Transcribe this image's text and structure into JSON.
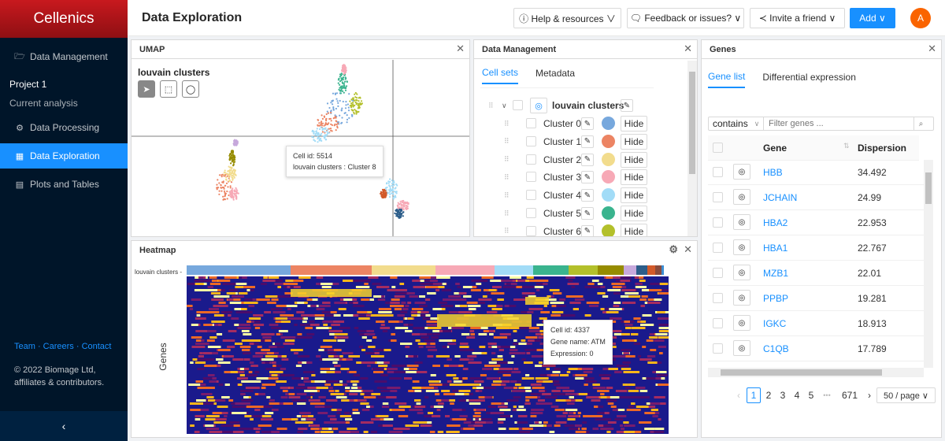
{
  "app": {
    "logo": "Cellenics"
  },
  "sidebar": {
    "items": [
      {
        "label": "Data Management",
        "icon": "folder-open-icon",
        "glyph": "🗁"
      },
      {
        "label": "Data Processing",
        "icon": "build-icon",
        "glyph": "⚙"
      },
      {
        "label": "Data Exploration",
        "icon": "fund-icon",
        "glyph": "▦"
      },
      {
        "label": "Plots and Tables",
        "icon": "database-icon",
        "glyph": "▤"
      }
    ],
    "project_label": "Project 1",
    "current_analysis": "Current analysis",
    "footer_links": "Team · Careers · Contact",
    "copyright": "© 2022 Biomage Ltd, affiliates & contributors.",
    "collapse_icon": "‹"
  },
  "header": {
    "title": "Data Exploration",
    "help": "ⓘ Help & resources ∨",
    "feedback": "🗨 Feedback or issues? ∨",
    "invite": "≺ Invite a friend ∨",
    "add": "Add ∨",
    "avatar": "A"
  },
  "umap": {
    "panel_title": "UMAP",
    "close": "✕",
    "plot_title": "louvain clusters",
    "tools": [
      "➤",
      "⬚",
      "◯"
    ],
    "tooltip": {
      "line1": "Cell id: 5514",
      "line2": "louvain clusters : Cluster 8"
    }
  },
  "data_management": {
    "panel_title": "Data Management",
    "close": "✕",
    "tabs": [
      "Cell sets",
      "Metadata"
    ],
    "root_label": "louvain clusters",
    "clusters": [
      {
        "label": "Cluster 0",
        "color": "#77a8dd"
      },
      {
        "label": "Cluster 1",
        "color": "#ec8463"
      },
      {
        "label": "Cluster 2",
        "color": "#f2dc8d"
      },
      {
        "label": "Cluster 3",
        "color": "#f7a9b6"
      },
      {
        "label": "Cluster 4",
        "color": "#a2dcf7"
      },
      {
        "label": "Cluster 5",
        "color": "#3ab48e"
      },
      {
        "label": "Cluster 6",
        "color": "#b3c02b"
      }
    ],
    "hide_label": "Hide",
    "edit_glyph": "✎"
  },
  "heatmap": {
    "panel_title": "Heatmap",
    "close": "✕",
    "settings": "⚙",
    "row_label": "louvain clusters -",
    "y_label": "Genes",
    "tooltip": {
      "line1": "Cell id: 4337",
      "line2": "Gene name: ATM",
      "line3": "Expression: 0"
    },
    "cluster_bar_colors": [
      "#77a8dd",
      "#ec8463",
      "#f2dc8d",
      "#f7a9b6",
      "#a2dcf7",
      "#3ab48e",
      "#b3c02b",
      "#968c00",
      "#c7a9dc",
      "#2d5e8a",
      "#d25a2a",
      "#8a4b3c",
      "#3c8dd2"
    ]
  },
  "genes": {
    "panel_title": "Genes",
    "close": "✕",
    "tabs": [
      "Gene list",
      "Differential expression"
    ],
    "filter_mode": "contains",
    "filter_placeholder": "Filter genes ...",
    "columns": [
      "Gene",
      "Dispersion"
    ],
    "rows": [
      {
        "gene": "HBB",
        "dispersion": "34.492"
      },
      {
        "gene": "JCHAIN",
        "dispersion": "24.99"
      },
      {
        "gene": "HBA2",
        "dispersion": "22.953"
      },
      {
        "gene": "HBA1",
        "dispersion": "22.767"
      },
      {
        "gene": "MZB1",
        "dispersion": "22.01"
      },
      {
        "gene": "PPBP",
        "dispersion": "19.281"
      },
      {
        "gene": "IGKC",
        "dispersion": "18.913"
      },
      {
        "gene": "C1QB",
        "dispersion": "17.789"
      }
    ],
    "pagination": {
      "prev": "‹",
      "pages": [
        "1",
        "2",
        "3",
        "4",
        "5"
      ],
      "ellipsis": "•••",
      "last": "671",
      "next": "›",
      "page_size": "50 / page ∨",
      "current": "1"
    }
  }
}
